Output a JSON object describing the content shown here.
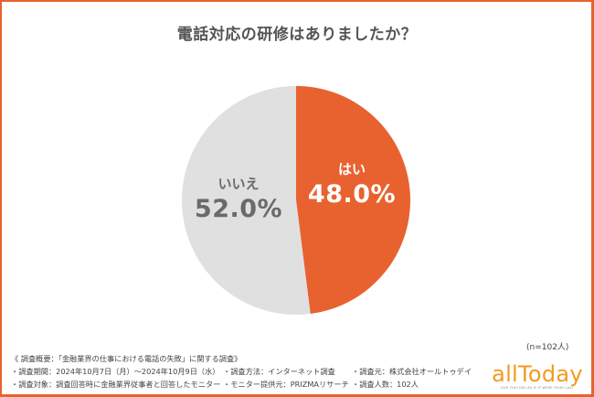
{
  "chart_data": {
    "type": "pie",
    "title": "電話対応の研修はありましたか？",
    "categories": [
      "はい",
      "いいえ"
    ],
    "values": [
      48.0,
      52.0
    ],
    "unit": "%",
    "colors": [
      "#e8622f",
      "#e0e0e0"
    ],
    "label_colors": [
      "#ffffff",
      "#6a6a6a"
    ],
    "start_angle_deg": 0,
    "direction": "clockwise",
    "sample_size": "(n=102人)",
    "legend": "none (labels inside slices)"
  },
  "labels": {
    "yes": {
      "name": "はい",
      "pct": "48.0%"
    },
    "no": {
      "name": "いいえ",
      "pct": "52.0%"
    }
  },
  "n_count": "(n=102人)",
  "notes": {
    "header": "《 調査概要：「金融業界の仕事における電話の失敗」に関する調査》",
    "row1": {
      "period": "・調査期間：2024年10月7日（月）～2024年10月9日（水）",
      "method": "・調査方法：インターネット調査",
      "source": "・調査元：株式会社オールトゥデイ"
    },
    "row2": {
      "target": "・調査対象：調査回答時に金融業界従事者と回答したモニター",
      "provider": "・モニター提供元：PRIZMAリサーチ",
      "count": "・調査人数：102人"
    }
  },
  "logo": {
    "wordmark": "allToday",
    "tagline": "LIVE THIS DAY AS IF IT WERE YOUR LAST",
    "color": "#f39a1f"
  },
  "colors": {
    "frame_border": "#e8622f",
    "title_text": "#555555"
  }
}
